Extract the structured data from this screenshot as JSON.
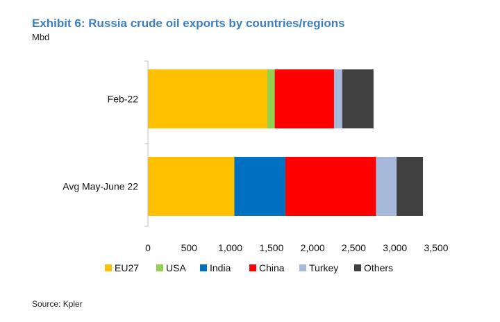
{
  "chart_data": {
    "type": "bar",
    "orientation": "horizontal",
    "stacked": true,
    "title": "Exhibit 6: Russia crude oil exports by countries/regions",
    "unit_label": "Mbd",
    "categories": [
      "Feb-22",
      "Avg May-June 22"
    ],
    "series": [
      {
        "name": "EU27",
        "color": "#FFC000",
        "values": [
          1450,
          1050
        ]
      },
      {
        "name": "USA",
        "color": "#92D050",
        "values": [
          90,
          0
        ]
      },
      {
        "name": "India",
        "color": "#0070C0",
        "values": [
          0,
          620
        ]
      },
      {
        "name": "China",
        "color": "#FF0000",
        "values": [
          720,
          1100
        ]
      },
      {
        "name": "Turkey",
        "color": "#A6B9DB",
        "values": [
          100,
          250
        ]
      },
      {
        "name": "Others",
        "color": "#404040",
        "values": [
          380,
          320
        ]
      }
    ],
    "x_ticks": [
      "0",
      "500",
      "1,000",
      "1,500",
      "2,000",
      "2,500",
      "3,000",
      "3,500"
    ],
    "xlim": [
      0,
      3500
    ],
    "legend_position": "bottom",
    "grid": false,
    "source": "Source: Kpler"
  }
}
